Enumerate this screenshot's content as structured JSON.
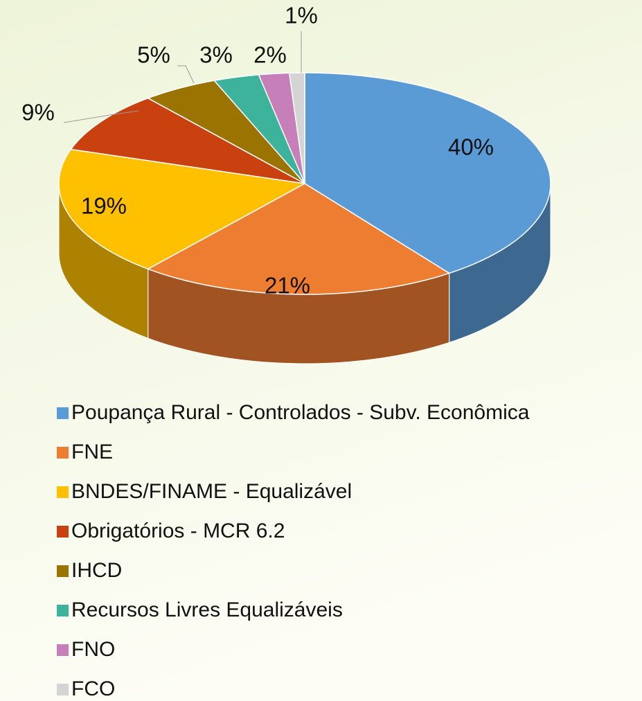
{
  "chart_data": {
    "type": "pie3d",
    "categories": [
      "Poupança Rural - Controlados - Subv. Econômica",
      "FNE",
      "BNDES/FINAME - Equalizável",
      "Obrigatórios - MCR 6.2",
      "IHCD",
      "Recursos Livres Equalizáveis",
      "FNO",
      "FCO"
    ],
    "values": [
      40,
      21,
      19,
      9,
      5,
      3,
      2,
      1
    ],
    "value_labels": [
      "40%",
      "21%",
      "19%",
      "9%",
      "5%",
      "3%",
      "2%",
      "1%"
    ],
    "colors": [
      "#5b9bd5",
      "#ed7d31",
      "#ffc000",
      "#c9410f",
      "#9a7300",
      "#3db39b",
      "#c67fb8",
      "#d4d4d4"
    ],
    "legend": "bottom"
  }
}
